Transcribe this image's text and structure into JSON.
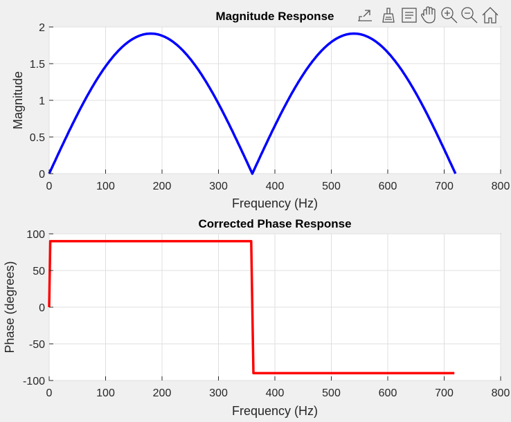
{
  "toolbar": {
    "icons": [
      "export-icon",
      "brush-icon",
      "datatip-icon",
      "pan-icon",
      "zoom-in-icon",
      "zoom-out-icon",
      "home-icon"
    ]
  },
  "chart_data": [
    {
      "type": "line",
      "title": "Magnitude Response",
      "xlabel": "Frequency (Hz)",
      "ylabel": "Magnitude",
      "xlim": [
        0,
        800
      ],
      "ylim": [
        0,
        2
      ],
      "xticks": [
        "0",
        "100",
        "200",
        "300",
        "400",
        "500",
        "600",
        "700",
        "800"
      ],
      "yticks": [
        "0",
        "0.5",
        "1",
        "1.5",
        "2"
      ],
      "grid": true,
      "series": [
        {
          "color": "#0000ff",
          "x": [
            0,
            20,
            40,
            60,
            80,
            100,
            120,
            140,
            160,
            180,
            200,
            220,
            240,
            260,
            280,
            300,
            320,
            340,
            360,
            380,
            400,
            420,
            440,
            460,
            480,
            500,
            520,
            540,
            560,
            580,
            600,
            620,
            640,
            660,
            680,
            700,
            720
          ],
          "y": [
            0,
            0.33,
            0.65,
            0.95,
            1.22,
            1.46,
            1.65,
            1.79,
            1.88,
            1.91,
            1.88,
            1.79,
            1.65,
            1.46,
            1.22,
            0.95,
            0.65,
            0.33,
            0,
            0.33,
            0.65,
            0.95,
            1.22,
            1.46,
            1.65,
            1.79,
            1.88,
            1.91,
            1.88,
            1.79,
            1.65,
            1.46,
            1.22,
            0.95,
            0.65,
            0.33,
            0
          ]
        }
      ]
    },
    {
      "type": "line",
      "title": "Corrected Phase Response",
      "xlabel": "Frequency (Hz)",
      "ylabel": "Phase (degrees)",
      "xlim": [
        0,
        800
      ],
      "ylim": [
        -100,
        100
      ],
      "xticks": [
        "0",
        "100",
        "200",
        "300",
        "400",
        "500",
        "600",
        "700",
        "800"
      ],
      "yticks": [
        "-100",
        "-50",
        "0",
        "50",
        "100"
      ],
      "grid": true,
      "series": [
        {
          "color": "#ff0000",
          "x": [
            0,
            2,
            358,
            360,
            362,
            718
          ],
          "y": [
            0,
            90,
            90,
            0,
            -90,
            -90
          ]
        }
      ]
    }
  ]
}
